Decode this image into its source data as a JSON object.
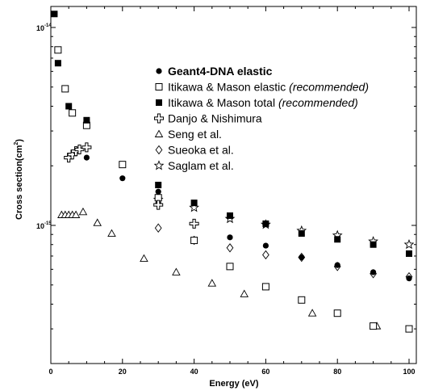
{
  "chart_data": {
    "type": "scatter",
    "xlabel": "Energy (eV)",
    "ylabel_main": "Cross section(cm",
    "ylabel_sup": "2",
    "ylabel_tail": ")",
    "xlim": [
      0,
      102
    ],
    "ylim": [
      2.1e-16,
      1.15e-14
    ],
    "yscale": "log",
    "xticks": [
      0,
      20,
      40,
      60,
      80,
      100
    ],
    "xtick_labels": [
      "0",
      "20",
      "40",
      "60",
      "80",
      "100"
    ],
    "yticks": [
      {
        "base": "10",
        "exp": "-14"
      },
      {
        "base": "10",
        "exp": "-15"
      }
    ],
    "ytick_values": [
      1e-14,
      1e-15
    ],
    "legend_position": "top-right",
    "series": [
      {
        "name": "Geant4-DNA elastic",
        "marker": "filled-circle",
        "points": [
          [
            10,
            2.2e-15
          ],
          [
            20,
            1.73e-15
          ],
          [
            30,
            1.48e-15
          ],
          [
            40,
            1.3e-15
          ],
          [
            50,
            8.7e-16
          ],
          [
            60,
            7.9e-16
          ],
          [
            70,
            6.9e-16
          ],
          [
            80,
            6.3e-16
          ],
          [
            90,
            5.8e-16
          ],
          [
            100,
            5.4e-16
          ]
        ]
      },
      {
        "name": "Itikawa & Mason elastic",
        "name_suffix": "(recommended)",
        "marker": "open-square",
        "points": [
          [
            2,
            7.7e-15
          ],
          [
            4,
            4.9e-15
          ],
          [
            6,
            3.7e-15
          ],
          [
            10,
            3.2e-15
          ],
          [
            20,
            2.03e-15
          ],
          [
            30,
            1.38e-15
          ],
          [
            40,
            8.4e-16
          ],
          [
            50,
            6.2e-16
          ],
          [
            60,
            4.9e-16
          ],
          [
            70,
            4.2e-16
          ],
          [
            80,
            3.6e-16
          ],
          [
            90,
            3.1e-16
          ],
          [
            100,
            3e-16
          ]
        ]
      },
      {
        "name": "Itikawa & Mason total",
        "name_suffix": "(recommended)",
        "marker": "filled-square",
        "points": [
          [
            1,
            1.17e-14
          ],
          [
            2,
            6.6e-15
          ],
          [
            5,
            4e-15
          ],
          [
            10,
            3.4e-15
          ],
          [
            30,
            1.6e-15
          ],
          [
            40,
            1.3e-15
          ],
          [
            50,
            1.12e-15
          ],
          [
            60,
            1.02e-15
          ],
          [
            70,
            9.1e-16
          ],
          [
            80,
            8.5e-16
          ],
          [
            90,
            8e-16
          ],
          [
            100,
            7.2e-16
          ]
        ]
      },
      {
        "name": "Danjo & Nishimura",
        "marker": "cross",
        "points": [
          [
            5,
            2.2e-15
          ],
          [
            6,
            2.28e-15
          ],
          [
            7,
            2.37e-15
          ],
          [
            8,
            2.42e-15
          ],
          [
            10,
            2.48e-15
          ],
          [
            30,
            1.27e-15
          ],
          [
            40,
            1.02e-15
          ]
        ]
      },
      {
        "name": "Seng et al.",
        "marker": "open-triangle",
        "points": [
          [
            3,
            1.13e-15
          ],
          [
            4,
            1.13e-15
          ],
          [
            5,
            1.13e-15
          ],
          [
            6,
            1.13e-15
          ],
          [
            7,
            1.13e-15
          ],
          [
            9,
            1.17e-15
          ],
          [
            13,
            1.03e-15
          ],
          [
            17,
            9.1e-16
          ],
          [
            26,
            6.8e-16
          ],
          [
            35,
            5.8e-16
          ],
          [
            45,
            5.1e-16
          ],
          [
            54,
            4.5e-16
          ],
          [
            73,
            3.6e-16
          ],
          [
            91,
            3.1e-16
          ]
        ]
      },
      {
        "name": "Sueoka et al.",
        "marker": "open-diamond",
        "points": [
          [
            30,
            9.7e-16
          ],
          [
            40,
            8.4e-16
          ],
          [
            50,
            7.7e-16
          ],
          [
            60,
            7.1e-16
          ],
          [
            70,
            6.9e-16
          ],
          [
            80,
            6.2e-16
          ],
          [
            90,
            5.7e-16
          ],
          [
            100,
            5.5e-16
          ]
        ]
      },
      {
        "name": "Saglam et al.",
        "marker": "open-star",
        "points": [
          [
            30,
            1.35e-15
          ],
          [
            40,
            1.23e-15
          ],
          [
            50,
            1.08e-15
          ],
          [
            60,
            1.01e-15
          ],
          [
            70,
            9.4e-16
          ],
          [
            80,
            8.9e-16
          ],
          [
            90,
            8.3e-16
          ],
          [
            100,
            8e-16
          ]
        ]
      }
    ]
  }
}
